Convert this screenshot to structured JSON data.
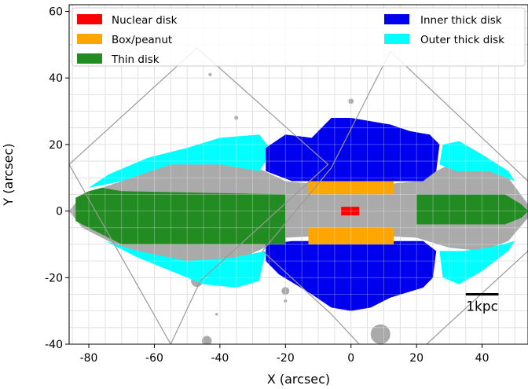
{
  "chart_data": {
    "type": "scatter",
    "title": "",
    "xlabel": "X (arcsec)",
    "ylabel": "Y (arcsec)",
    "xlim": [
      -86,
      54
    ],
    "ylim": [
      -40,
      62
    ],
    "x_ticks": [
      -80,
      -60,
      -40,
      -20,
      0,
      20,
      40
    ],
    "y_ticks": [
      -40,
      -20,
      0,
      20,
      40,
      60
    ],
    "grid": true,
    "grid_step": 5,
    "legend": {
      "placement": "top",
      "entries": [
        {
          "label": "Nuclear disk",
          "color": "#ff0000"
        },
        {
          "label": "Box/peanut",
          "color": "#ffa500"
        },
        {
          "label": "Thin disk",
          "color": "#228b22"
        },
        {
          "label": "Inner thick disk",
          "color": "#0000ee"
        },
        {
          "label": "Outer thick disk",
          "color": "#00ffff"
        }
      ]
    },
    "scale_bar": {
      "label": "1kpc",
      "x_from": 35,
      "x_to": 45,
      "y": -25
    },
    "colors": {
      "nuclear": "#ff0000",
      "box": "#ffa500",
      "thin": "#228b22",
      "inner_thick": "#0000ee",
      "outer_thick": "#00ffff",
      "other": "#aaaaaa",
      "footprint": "#999999",
      "grid": "#cccccc"
    },
    "footprint_boxes": [
      [
        [
          -86,
          14
        ],
        [
          -47,
          49
        ],
        [
          -7,
          14
        ],
        [
          -46,
          -21
        ],
        [
          -55,
          -40
        ]
      ],
      [
        [
          -6,
          13
        ],
        [
          12,
          48
        ],
        [
          54,
          9
        ],
        [
          54,
          -12
        ],
        [
          12,
          -50
        ],
        [
          -6,
          -31
        ],
        [
          -27,
          -12
        ]
      ]
    ],
    "regions": {
      "other": [
        [
          -82,
          5
        ],
        [
          -70,
          9
        ],
        [
          -62,
          14
        ],
        [
          -55,
          16
        ],
        [
          -45,
          17
        ],
        [
          -35,
          16
        ],
        [
          -20,
          9
        ],
        [
          0,
          7
        ],
        [
          20,
          9
        ],
        [
          30,
          14
        ],
        [
          40,
          14
        ],
        [
          48,
          10
        ],
        [
          54,
          2
        ],
        [
          54,
          -2
        ],
        [
          48,
          -9
        ],
        [
          40,
          -12
        ],
        [
          30,
          -11
        ],
        [
          20,
          -8
        ],
        [
          0,
          -7
        ],
        [
          -20,
          -8
        ],
        [
          -35,
          -15
        ],
        [
          -45,
          -20
        ],
        [
          -55,
          -18
        ],
        [
          -62,
          -15
        ],
        [
          -70,
          -11
        ],
        [
          -82,
          -5
        ],
        [
          -86,
          0
        ]
      ],
      "inner_thick_top": [
        [
          -26,
          19
        ],
        [
          -20,
          23
        ],
        [
          -12,
          22
        ],
        [
          -6,
          28
        ],
        [
          0,
          28
        ],
        [
          6,
          27
        ],
        [
          12,
          26
        ],
        [
          18,
          24
        ],
        [
          24,
          23
        ],
        [
          27,
          20
        ],
        [
          26,
          12
        ],
        [
          22,
          9
        ],
        [
          -18,
          9
        ],
        [
          -26,
          12
        ]
      ],
      "inner_thick_bottom": [
        [
          -26,
          -10
        ],
        [
          -18,
          -9
        ],
        [
          22,
          -9
        ],
        [
          26,
          -12
        ],
        [
          25,
          -20
        ],
        [
          22,
          -23
        ],
        [
          12,
          -26
        ],
        [
          6,
          -29
        ],
        [
          0,
          -30
        ],
        [
          -6,
          -29
        ],
        [
          -12,
          -25
        ],
        [
          -22,
          -19
        ],
        [
          -26,
          -15
        ]
      ],
      "outer_thick": [
        [
          [
            -80,
            7
          ],
          [
            -74,
            11
          ],
          [
            -62,
            16
          ],
          [
            -50,
            19
          ],
          [
            -40,
            22
          ],
          [
            -28,
            23
          ],
          [
            -24,
            18
          ],
          [
            -28,
            12
          ],
          [
            -40,
            14
          ],
          [
            -55,
            14
          ],
          [
            -70,
            9
          ]
        ],
        [
          [
            -75,
            -9
          ],
          [
            -65,
            -14
          ],
          [
            -55,
            -18
          ],
          [
            -45,
            -22
          ],
          [
            -35,
            -23
          ],
          [
            -28,
            -21
          ],
          [
            -26,
            -12
          ],
          [
            -36,
            -14
          ],
          [
            -50,
            -15
          ],
          [
            -65,
            -12
          ]
        ],
        [
          [
            28,
            20
          ],
          [
            33,
            21
          ],
          [
            40,
            17
          ],
          [
            48,
            12
          ],
          [
            50,
            9
          ],
          [
            42,
            12
          ],
          [
            32,
            12
          ],
          [
            27,
            14
          ]
        ],
        [
          [
            27,
            -12
          ],
          [
            34,
            -12
          ],
          [
            42,
            -11
          ],
          [
            50,
            -9
          ],
          [
            48,
            -12
          ],
          [
            40,
            -18
          ],
          [
            33,
            -22
          ],
          [
            28,
            -20
          ]
        ]
      ],
      "thin_disk": [
        [
          [
            -84,
            4
          ],
          [
            -80,
            6
          ],
          [
            -76,
            7
          ],
          [
            -70,
            6
          ],
          [
            -20,
            5
          ],
          [
            -20,
            -10
          ],
          [
            -70,
            -10
          ],
          [
            -76,
            -7
          ],
          [
            -80,
            -5
          ],
          [
            -84,
            -3
          ]
        ],
        [
          [
            20,
            5
          ],
          [
            47,
            5
          ],
          [
            52,
            2
          ],
          [
            54,
            0
          ],
          [
            52,
            -2
          ],
          [
            47,
            -4
          ],
          [
            20,
            -4
          ]
        ]
      ],
      "box_peanut": [
        [
          [
            -13,
            5
          ],
          [
            13,
            5
          ],
          [
            13,
            9
          ],
          [
            -13,
            9
          ]
        ],
        [
          [
            -13,
            -10
          ],
          [
            13,
            -10
          ],
          [
            13,
            -5
          ],
          [
            -13,
            -5
          ]
        ]
      ],
      "nuclear_disk": [
        [
          [
            -3,
            -1.3
          ],
          [
            2.5,
            -1.3
          ],
          [
            2.5,
            1.3
          ],
          [
            -3,
            1.3
          ]
        ]
      ]
    },
    "gray_blobs": [
      [
        -44,
        -39,
        1.5
      ],
      [
        -47,
        -21,
        1.8
      ],
      [
        -20,
        -24,
        1.2
      ],
      [
        -42,
        -15,
        1.0
      ],
      [
        9,
        -37,
        3.0
      ],
      [
        3,
        -27,
        0.6
      ],
      [
        0,
        33,
        0.8
      ],
      [
        -20,
        -27,
        0.5
      ],
      [
        -43,
        41,
        0.5
      ],
      [
        -49,
        17,
        1.2
      ],
      [
        -35,
        28,
        0.6
      ],
      [
        -41,
        -31,
        0.4
      ]
    ]
  }
}
